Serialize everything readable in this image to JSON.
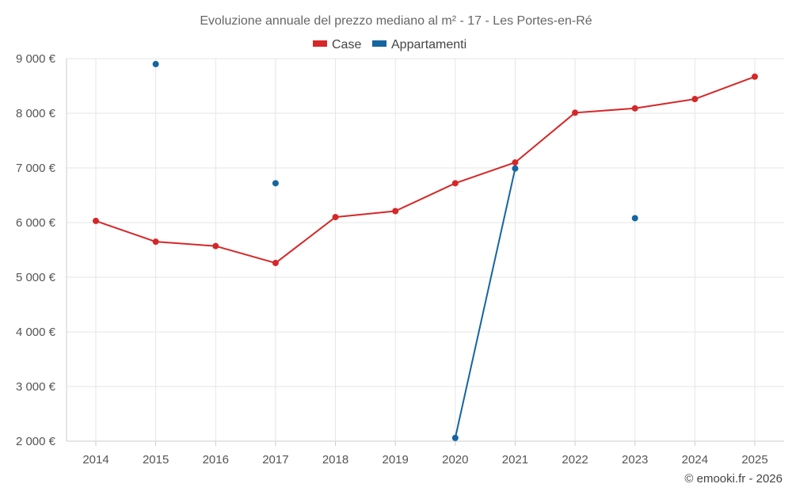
{
  "chart_data": {
    "type": "line",
    "title": "Evoluzione annuale del prezzo mediano al m² - 17 - Les Portes-en-Ré",
    "xlabel": "",
    "ylabel": "",
    "x": [
      2014,
      2015,
      2016,
      2017,
      2018,
      2019,
      2020,
      2021,
      2022,
      2023,
      2024,
      2025
    ],
    "x_labels": [
      "2014",
      "2015",
      "2016",
      "2017",
      "2018",
      "2019",
      "2020",
      "2021",
      "2022",
      "2023",
      "2024",
      "2025"
    ],
    "ylim": [
      2000,
      9000
    ],
    "y_ticks": [
      2000,
      3000,
      4000,
      5000,
      6000,
      7000,
      8000,
      9000
    ],
    "y_tick_labels": [
      "2 000 €",
      "3 000 €",
      "4 000 €",
      "5 000 €",
      "6 000 €",
      "7 000 €",
      "8 000 €",
      "9 000 €"
    ],
    "grid": true,
    "legend_position": "top-center",
    "series": [
      {
        "name": "Case",
        "color": "#d62728",
        "values": [
          6030,
          5650,
          5570,
          5260,
          6100,
          6210,
          6720,
          7100,
          8010,
          8090,
          8260,
          8670
        ]
      },
      {
        "name": "Appartamenti",
        "color": "#1565a0",
        "values": [
          null,
          8900,
          null,
          6720,
          null,
          null,
          2060,
          6990,
          null,
          6080,
          null,
          null
        ]
      }
    ]
  },
  "credit": "© emooki.fr - 2026"
}
